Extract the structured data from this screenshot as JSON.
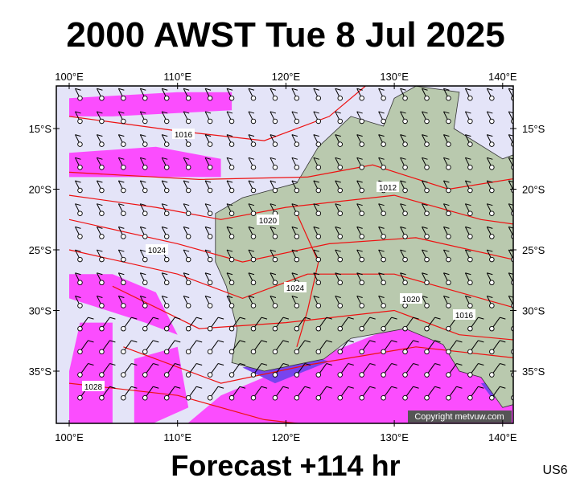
{
  "title": "2000 AWST Tue 8 Jul 2025",
  "footer": "Forecast +114 hr",
  "code": "US6",
  "copyright": "Copyright metvuw.com",
  "lon_labels": [
    "100°E",
    "110°E",
    "120°E",
    "130°E",
    "140°E"
  ],
  "lat_labels": [
    "15°S",
    "20°S",
    "25°S",
    "30°S",
    "35°S"
  ],
  "isobar_labels": [
    "1016",
    "1020",
    "1012",
    "1024",
    "1024",
    "1020",
    "1016",
    "1028"
  ]
}
